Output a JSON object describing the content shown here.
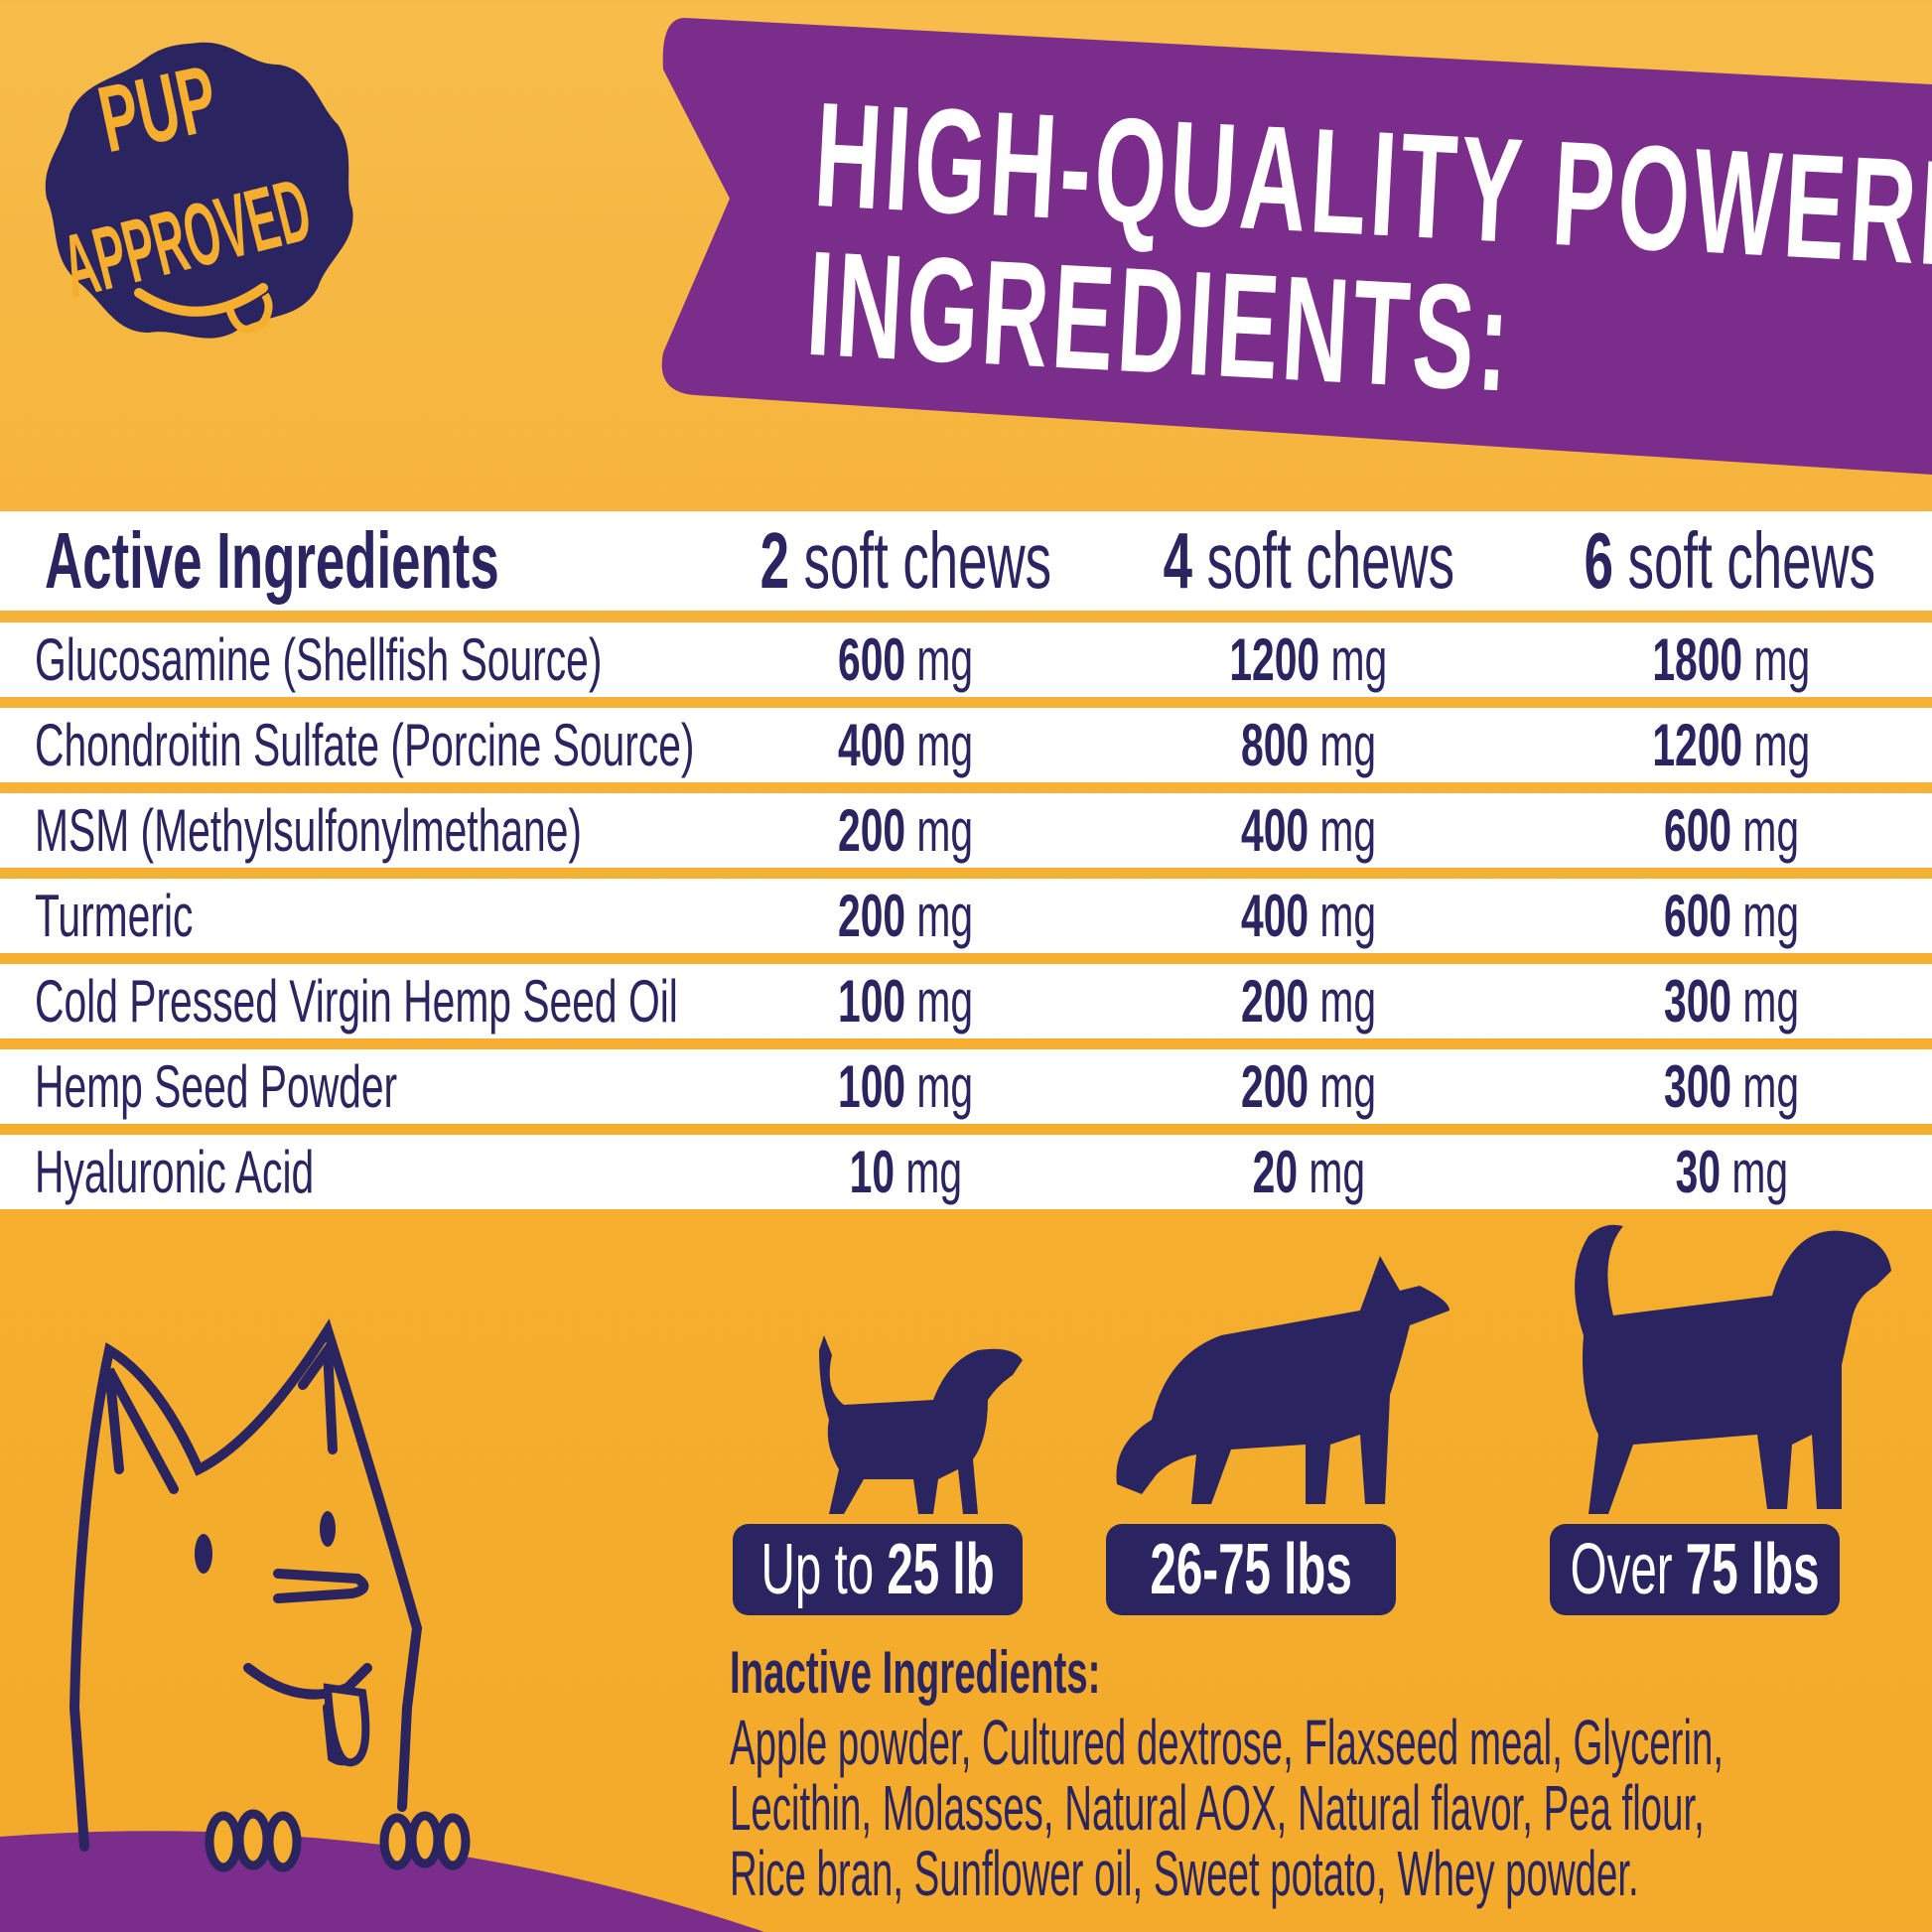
{
  "badge": {
    "line1": "PUP",
    "line2": "APPROVED"
  },
  "headline": {
    "line1": "HIGH-QUALITY POWERFUL",
    "line2": "INGREDIENTS:"
  },
  "table": {
    "header": {
      "name": "Active Ingredients",
      "cols": [
        {
          "num": "2",
          "label": " soft chews"
        },
        {
          "num": "4",
          "label": " soft chews"
        },
        {
          "num": "6",
          "label": " soft chews"
        }
      ]
    },
    "unit": " mg",
    "rows": [
      {
        "name": "Glucosamine (Shellfish Source)",
        "values": [
          "600",
          "1200",
          "1800"
        ]
      },
      {
        "name": "Chondroitin Sulfate (Porcine Source)",
        "values": [
          "400",
          "800",
          "1200"
        ]
      },
      {
        "name": "MSM (Methylsulfonylmethane)",
        "values": [
          "200",
          "400",
          "600"
        ]
      },
      {
        "name": "Turmeric",
        "values": [
          "200",
          "400",
          "600"
        ]
      },
      {
        "name": "Cold Pressed Virgin Hemp Seed Oil",
        "values": [
          "100",
          "200",
          "300"
        ]
      },
      {
        "name": "Hemp Seed Powder",
        "values": [
          "100",
          "200",
          "300"
        ]
      },
      {
        "name": "Hyaluronic Acid",
        "values": [
          "10",
          "20",
          "30"
        ]
      }
    ]
  },
  "weights": [
    {
      "pre": "Up to ",
      "bold": "25 lb"
    },
    {
      "pre": "",
      "bold": "26-75 lbs"
    },
    {
      "pre": "Over ",
      "bold": "75 lbs"
    }
  ],
  "inactive": {
    "heading": "Inactive Ingredients:",
    "lines": [
      "Apple powder, Cultured dextrose, Flaxseed meal, Glycerin,",
      "Lecithin, Molasses, Natural AOX, Natural flavor, Pea flour,",
      "Rice bran, Sunflower oil, Sweet potato, Whey powder."
    ]
  },
  "colors": {
    "orange": "#F5AE2E",
    "purple": "#7B2D8B",
    "navy": "#2A2460",
    "white": "#FFFFFF"
  }
}
